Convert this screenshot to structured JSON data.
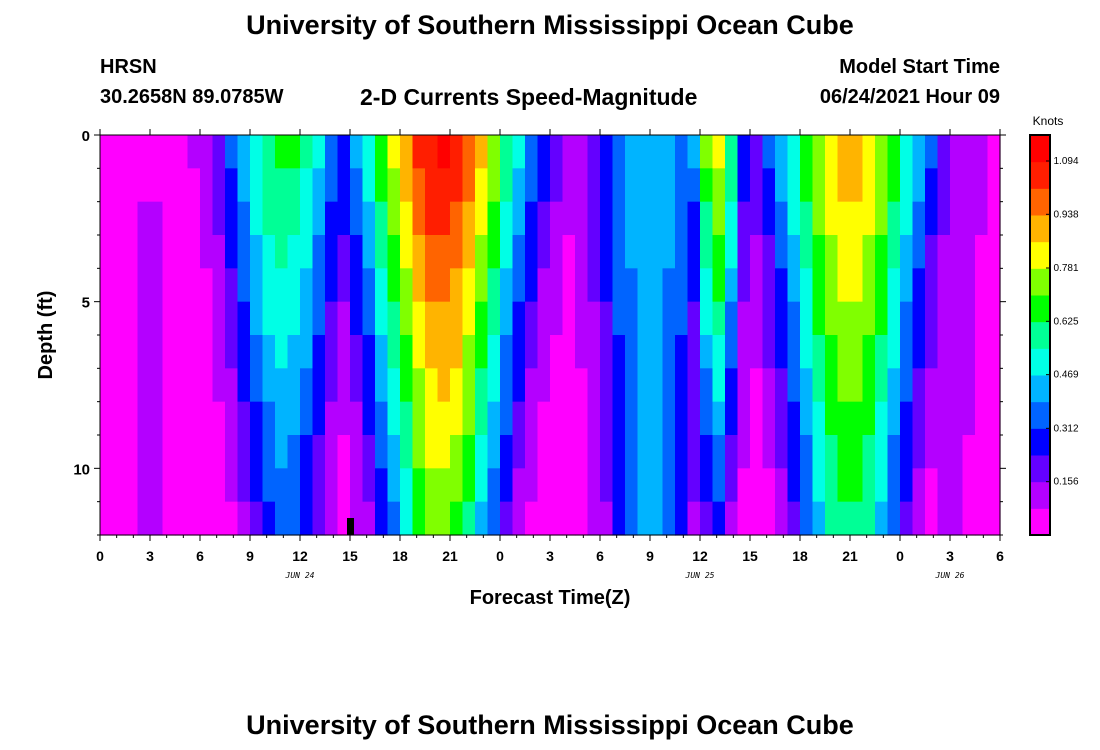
{
  "header": {
    "title_top": "University of Southern Mississippi Ocean Cube",
    "station": "HRSN",
    "coords": "30.2658N  89.0785W",
    "subtitle": "2-D Currents Speed-Magnitude",
    "model_label": "Model Start Time",
    "model_time": "06/24/2021 Hour 09",
    "title_bottom": "University of Southern Mississippi Ocean Cube"
  },
  "colors": {
    "scale": [
      "#ff00ff",
      "#b400ff",
      "#6400ff",
      "#0000ff",
      "#0064ff",
      "#00b4ff",
      "#00ffe6",
      "#00ff96",
      "#00ff00",
      "#80ff00",
      "#ffff00",
      "#ffb400",
      "#ff6400",
      "#ff1e00",
      "#ff0000"
    ],
    "marker": "#000000"
  },
  "chart_data": {
    "type": "heatmap",
    "title": "2-D Currents Speed-Magnitude",
    "xlabel": "Forecast Time(Z)",
    "ylabel": "Depth (ft)",
    "x_range_hours": [
      0,
      54
    ],
    "y_range_ft": [
      0,
      12
    ],
    "x_tick_labels": [
      "0",
      "3",
      "6",
      "9",
      "12",
      "15",
      "18",
      "21",
      "0",
      "3",
      "6",
      "9",
      "12",
      "15",
      "18",
      "21",
      "0",
      "3",
      "6"
    ],
    "y_tick_labels": [
      "0",
      "5",
      "10"
    ],
    "y_ticks": [
      0,
      5,
      10
    ],
    "date_labels": [
      {
        "text": "JUN 24",
        "hour": 12
      },
      {
        "text": "JUN 25",
        "hour": 36
      },
      {
        "text": "JUN 26",
        "hour": 51
      }
    ],
    "colorbar": {
      "unit": "Knots",
      "min": 0.0,
      "max": 1.17,
      "tick_labels": [
        "1.094",
        "0.938",
        "0.781",
        "0.625",
        "0.469",
        "0.312",
        "0.156"
      ],
      "ticks": [
        1.094,
        0.938,
        0.781,
        0.625,
        0.469,
        0.312,
        0.156
      ]
    },
    "current_time_marker_hour": 15,
    "peaks": [
      {
        "hour": 3.0,
        "surface": 0.06,
        "bottom": 0.18,
        "half_width": 1.5
      },
      {
        "hour": 11.0,
        "surface": 0.66,
        "bottom": 0.33,
        "half_width": 3.8
      },
      {
        "hour": 15.0,
        "surface": 0.21,
        "bottom": 0.02,
        "half_width": 0.8
      },
      {
        "hour": 20.5,
        "surface": 1.12,
        "bottom": 0.72,
        "half_width": 5.2
      },
      {
        "hour": 24.0,
        "surface": 0.38,
        "bottom": 0.1,
        "half_width": 1.6
      },
      {
        "hour": 28.0,
        "surface": 0.08,
        "bottom": 0.05,
        "half_width": 2.5
      },
      {
        "hour": 33.0,
        "surface": 0.45,
        "bottom": 0.4,
        "half_width": 4.0
      },
      {
        "hour": 37.0,
        "surface": 0.86,
        "bottom": 0.26,
        "half_width": 1.6
      },
      {
        "hour": 38.5,
        "surface": 0.18,
        "bottom": 0.06,
        "half_width": 0.7
      },
      {
        "hour": 45.0,
        "surface": 0.92,
        "bottom": 0.62,
        "half_width": 4.8
      },
      {
        "hour": 51.0,
        "surface": 0.14,
        "bottom": 0.09,
        "half_width": 3.0
      }
    ]
  }
}
